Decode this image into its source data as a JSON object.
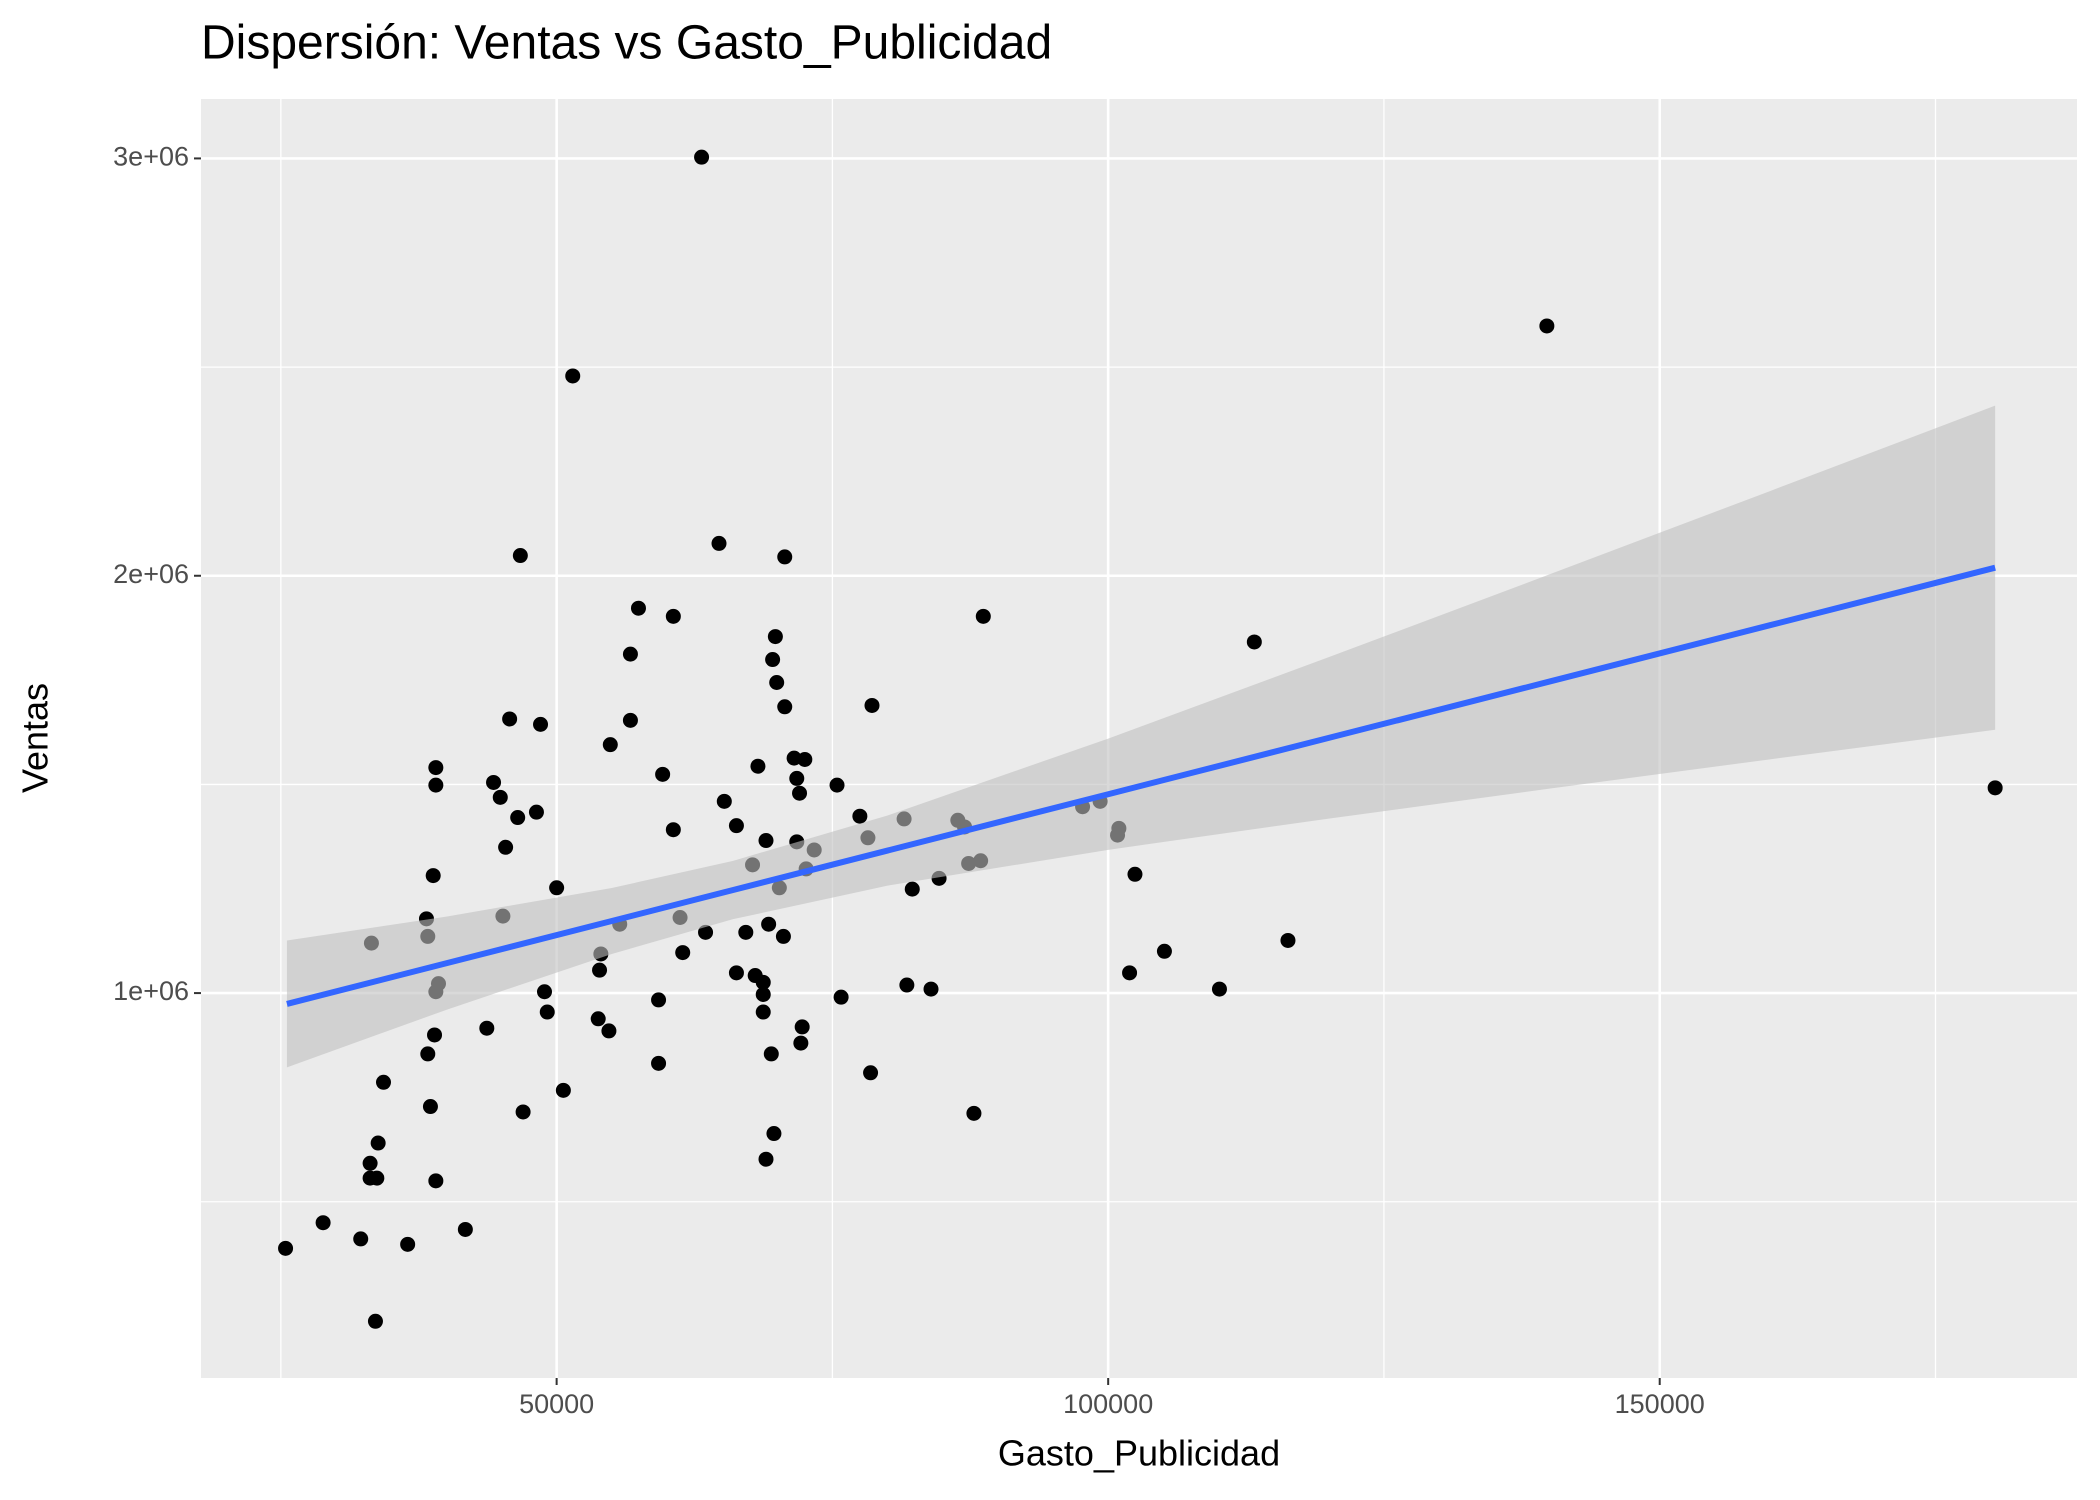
{
  "chart_data": {
    "type": "scatter",
    "title": "Dispersión: Ventas vs Gasto_Publicidad",
    "x_label": "Gasto_Publicidad",
    "y_label": "Ventas",
    "xlim": [
      17760,
      187830
    ],
    "ylim": [
      77670,
      3142400
    ],
    "xticks": [
      50000,
      100000,
      150000
    ],
    "yticks": [
      {
        "value": 1000000,
        "label": "1e+06"
      },
      {
        "value": 2000000,
        "label": "2e+06"
      },
      {
        "value": 3000000,
        "label": "3e+06"
      }
    ],
    "minor_xgrid": [
      25000,
      75000,
      125000,
      175000
    ],
    "minor_ygrid": [
      500000,
      1500000,
      2500000
    ],
    "grid": true,
    "panel_color": "#ebebeb",
    "series": [
      {
        "color": "#000000",
        "x": [
          25425,
          28830,
          32240,
          33575,
          33090,
          33090,
          33700,
          33820,
          34305,
          36495,
          33210,
          41725,
          39050,
          38560,
          38930,
          38320,
          39050,
          39290,
          38320,
          38200,
          38810,
          39050,
          39050,
          44280,
          44890,
          45375,
          46470,
          48170,
          45130,
          45740,
          48540,
          46710,
          43670,
          46960,
          48900,
          49150,
          50610,
          50000,
          51460,
          53770,
          54740,
          53890,
          54010,
          55720,
          54865,
          56690,
          56690,
          57420,
          60580,
          59610,
          60580,
          59240,
          59240,
          61190,
          61430,
          63500,
          63140,
          64720,
          65200,
          66300,
          66300,
          67150,
          67760,
          68000,
          68250,
          68730,
          68730,
          68730,
          69220,
          68980,
          69460,
          68980,
          69700,
          69580,
          69830,
          69950,
          70190,
          70560,
          70680,
          70680,
          71530,
          71770,
          72020,
          71770,
          72500,
          72620,
          73350,
          72260,
          72140,
          75420,
          75790,
          77490,
          78220,
          78590,
          78460,
          81500,
          81750,
          82240,
          83940,
          84670,
          86370,
          86980,
          87350,
          88440,
          87830,
          88680,
          97680,
          99270,
          100850,
          100970,
          102430,
          101940,
          105100,
          110090,
          113250,
          116300,
          139770,
          180410
        ],
        "values": [
          388300,
          449800,
          411000,
          213600,
          592200,
          556600,
          556600,
          640700,
          786300,
          398000,
          1119700,
          433600,
          550100,
          728100,
          899600,
          854300,
          1003200,
          1022600,
          1135800,
          1177900,
          1281500,
          1498300,
          1540300,
          1504700,
          1469100,
          1349400,
          1420600,
          1433500,
          1184400,
          1656800,
          1643900,
          2048400,
          915800,
          715200,
          1003200,
          954600,
          766900,
          1252300,
          2478800,
          938400,
          909300,
          1054900,
          1093800,
          1165000,
          1595300,
          1653600,
          1812200,
          1922200,
          1902800,
          1524200,
          1391500,
          983700,
          831700,
          1181100,
          1097000,
          1145500,
          3003000,
          2077500,
          1459400,
          1401200,
          1048500,
          1145500,
          1307300,
          1042000,
          1543600,
          996700,
          1025800,
          954600,
          1165000,
          1365600,
          854300,
          601900,
          663400,
          1799200,
          1854200,
          1744200,
          1252300,
          1135800,
          1686000,
          2045200,
          1563000,
          1514400,
          1478900,
          1362400,
          1559800,
          1297600,
          1342900,
          919000,
          880200,
          1498300,
          990200,
          1423800,
          1372100,
          1689200,
          809000,
          1417400,
          1019300,
          1249100,
          1009600,
          1275000,
          1414100,
          1398000,
          1310600,
          1317100,
          711900,
          1902800,
          1446500,
          1459400,
          1378500,
          1394700,
          1284700,
          1048500,
          1100200,
          1009600,
          1841300,
          1126100,
          2598500,
          1491800
        ]
      }
    ],
    "fit": {
      "color": "#3366ff",
      "band_color": "#bfbfbf",
      "x": [
        25550,
        40000,
        55000,
        66000,
        80000,
        100000,
        120000,
        140000,
        160000,
        180410
      ],
      "values": [
        974000,
        1071500,
        1172800,
        1247000,
        1341500,
        1476500,
        1611500,
        1746500,
        1881500,
        2019300
      ],
      "lower": [
        821900,
        959900,
        1093800,
        1177100,
        1257400,
        1343200,
        1418100,
        1489800,
        1560100,
        1631000
      ],
      "upper": [
        1126100,
        1183100,
        1251800,
        1316900,
        1425600,
        1609800,
        1804900,
        2003200,
        2202900,
        2407600
      ]
    }
  }
}
